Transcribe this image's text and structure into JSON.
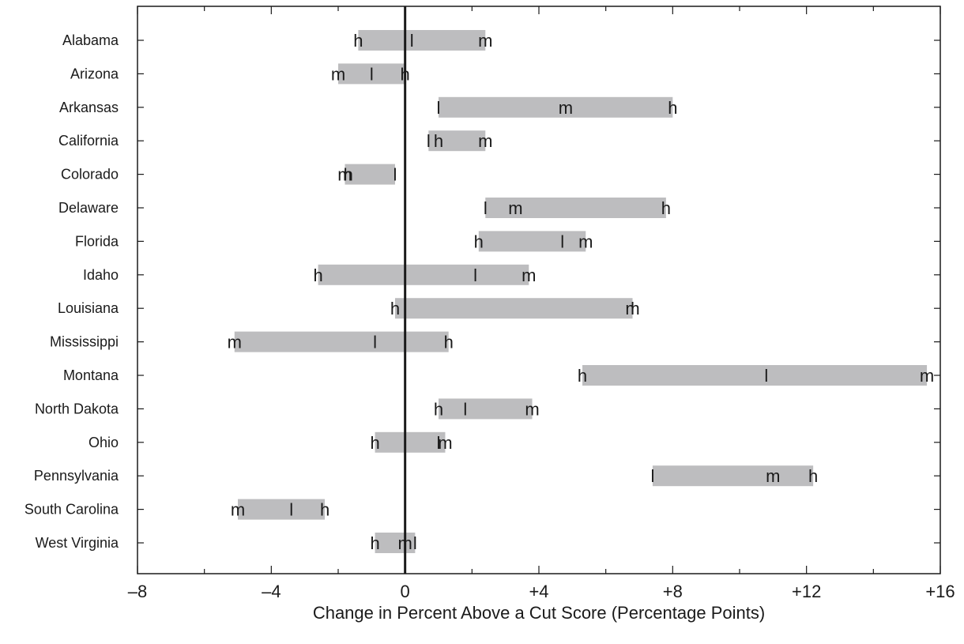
{
  "chart_data": {
    "type": "bar",
    "orientation": "horizontal-range",
    "xlabel": "Change in Percent Above a Cut Score (Percentage Points)",
    "ylabel": "",
    "title": "",
    "xlim": [
      -8,
      16
    ],
    "xticks": [
      -8,
      -4,
      0,
      4,
      8,
      12,
      16
    ],
    "xtick_labels": [
      "–8",
      "–4",
      "0",
      "+4",
      "+8",
      "+12",
      "+16"
    ],
    "zero_line": 0,
    "grid": false,
    "bar_color": "#bdbdbf",
    "categories": [
      "Alabama",
      "Arizona",
      "Arkansas",
      "California",
      "Colorado",
      "Delaware",
      "Florida",
      "Idaho",
      "Louisiana",
      "Mississippi",
      "Montana",
      "North Dakota",
      "Ohio",
      "Pennsylvania",
      "South Carolina",
      "West Virginia"
    ],
    "marker_series": [
      {
        "symbol": "h",
        "values": [
          -1.4,
          0.0,
          8.0,
          1.0,
          -1.7,
          7.8,
          2.2,
          -2.6,
          -0.3,
          1.3,
          5.3,
          1.0,
          -0.9,
          12.2,
          -2.4,
          -0.9
        ]
      },
      {
        "symbol": "l",
        "values": [
          0.2,
          -1.0,
          1.0,
          0.7,
          -0.3,
          2.4,
          4.7,
          2.1,
          6.8,
          -0.9,
          10.8,
          1.8,
          1.0,
          7.4,
          -3.4,
          0.3
        ]
      },
      {
        "symbol": "m",
        "values": [
          2.4,
          -2.0,
          4.8,
          2.4,
          -1.8,
          3.3,
          5.4,
          3.7,
          6.8,
          -5.1,
          15.6,
          3.8,
          1.2,
          11.0,
          -5.0,
          -0.0
        ]
      }
    ]
  }
}
